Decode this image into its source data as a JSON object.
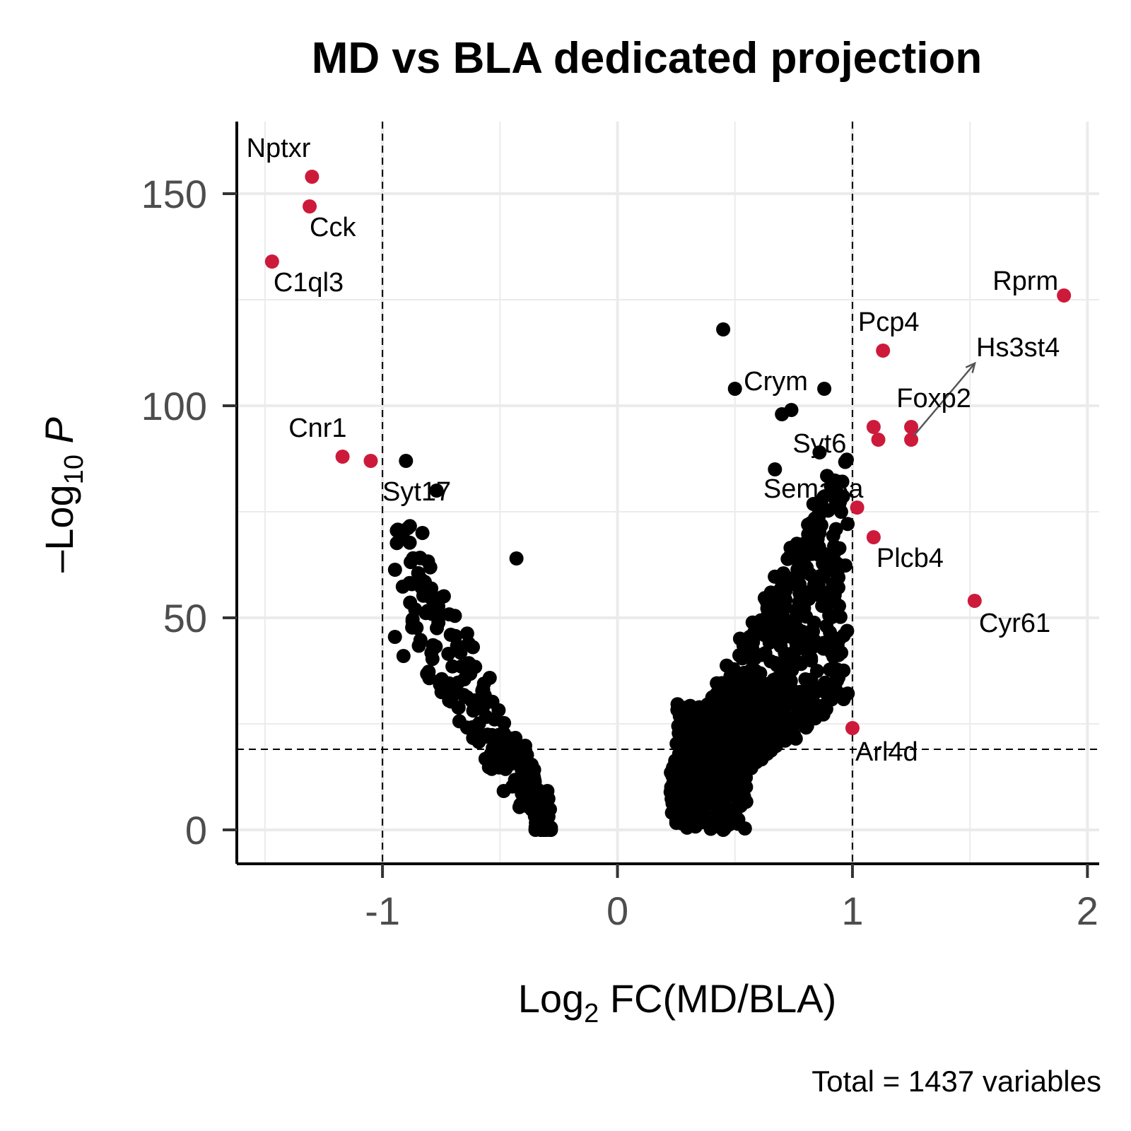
{
  "chart_data": {
    "type": "scatter",
    "title": "MD vs BLA dedicated projection",
    "xlabel": {
      "base": "Log",
      "sub": "2",
      "rest": " FC(MD/BLA)"
    },
    "ylabel": {
      "prefix": "–Log",
      "sub": "10",
      "italic": "P"
    },
    "caption": "Total = 1437 variables",
    "xlim": [
      -1.62,
      2.05
    ],
    "ylim": [
      -8,
      167
    ],
    "xticks": [
      -1,
      0,
      1,
      2
    ],
    "yticks": [
      0,
      50,
      100,
      150
    ],
    "x_tick_labels": [
      "-1",
      "0",
      "1",
      "2"
    ],
    "y_tick_labels": [
      "0",
      "50",
      "100",
      "150"
    ],
    "cutoffs": {
      "log2fc": [
        -1,
        1
      ],
      "neglog10p": 19
    },
    "grid": true,
    "legend": "none",
    "colors": {
      "significant": "#cd1a3b",
      "other": "#000000",
      "grid": "#ebebeb"
    },
    "highlighted": [
      {
        "gene": "Nptxr",
        "x": -1.3,
        "y": 154,
        "label_anchor": "end"
      },
      {
        "gene": "Cck",
        "x": -1.31,
        "y": 147,
        "label_anchor": "start"
      },
      {
        "gene": "C1ql3",
        "x": -1.47,
        "y": 134,
        "label_anchor": "start"
      },
      {
        "gene": "Cnr1",
        "x": -1.17,
        "y": 88,
        "label_anchor": "end"
      },
      {
        "gene": "",
        "x": -1.05,
        "y": 87
      },
      {
        "gene": "Rprm",
        "x": 1.9,
        "y": 126,
        "label_anchor": "end"
      },
      {
        "gene": "Pcp4",
        "x": 1.13,
        "y": 113,
        "label_anchor": "middle"
      },
      {
        "gene": "Foxp2",
        "x": 1.25,
        "y": 95,
        "label_anchor": "middle"
      },
      {
        "gene": "Hs3st4",
        "x": 1.25,
        "y": 92,
        "label_anchor": "start"
      },
      {
        "gene": "",
        "x": 1.09,
        "y": 95
      },
      {
        "gene": "",
        "x": 1.11,
        "y": 92
      },
      {
        "gene": "",
        "x": 1.02,
        "y": 76
      },
      {
        "gene": "Plcb4",
        "x": 1.09,
        "y": 69,
        "label_anchor": "start"
      },
      {
        "gene": "Cyr61",
        "x": 1.52,
        "y": 54,
        "label_anchor": "start"
      },
      {
        "gene": "Arl4d",
        "x": 1.0,
        "y": 24,
        "label_anchor": "start"
      }
    ],
    "labeled_other": [
      {
        "gene": "Crym",
        "x": 0.74,
        "y": 99
      },
      {
        "gene": "Syt6",
        "x": 0.86,
        "y": 89
      },
      {
        "gene": "Sema5a",
        "x": 0.93,
        "y": 80
      },
      {
        "gene": "Syt17",
        "x": -0.77,
        "y": 80
      }
    ],
    "notable_points": [
      {
        "x": 0.45,
        "y": 118
      },
      {
        "x": 0.5,
        "y": 104
      },
      {
        "x": 0.88,
        "y": 104
      },
      {
        "x": -0.9,
        "y": 87
      },
      {
        "x": 0.7,
        "y": 98
      },
      {
        "x": 0.67,
        "y": 85
      },
      {
        "x": -0.43,
        "y": 64
      },
      {
        "x": 0.45,
        "y": 0
      },
      {
        "x": -0.83,
        "y": 70
      }
    ]
  }
}
